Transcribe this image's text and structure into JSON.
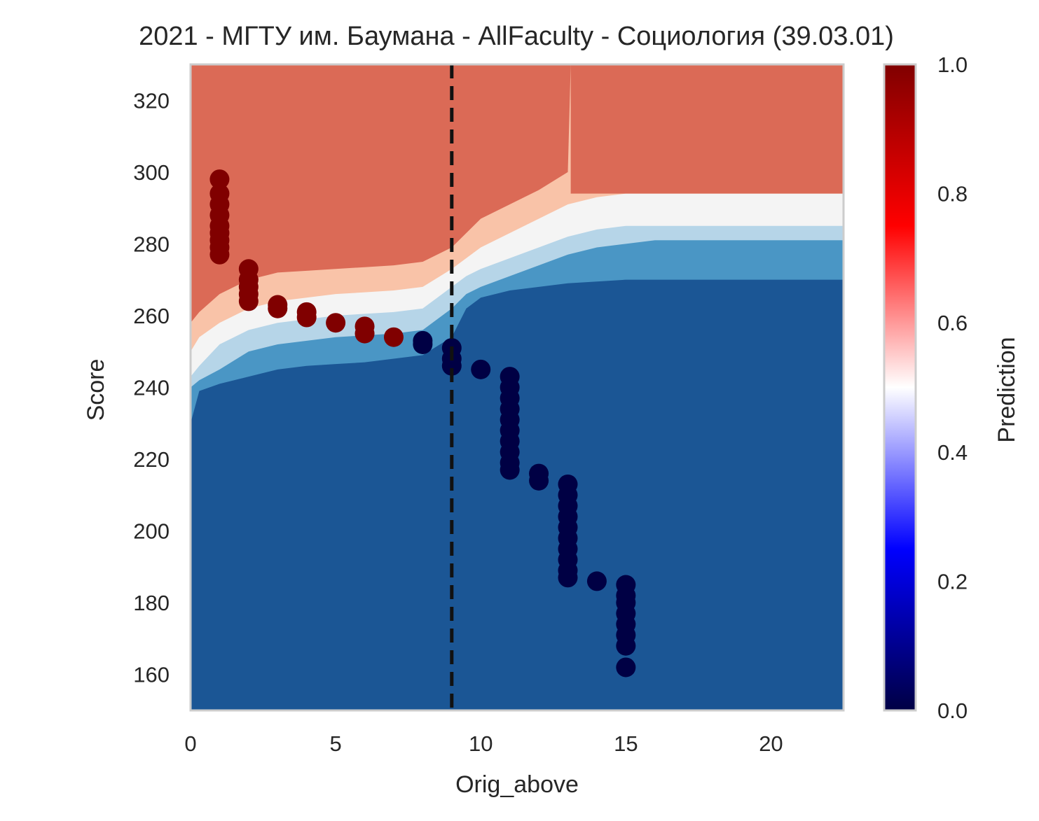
{
  "chart_data": {
    "type": "scatter",
    "title": "2021 - МГТУ им. Баумана - AllFaculty - Социология (39.03.01)",
    "xlabel": "Orig_above",
    "ylabel": "Score",
    "xlim": [
      0,
      22.5
    ],
    "ylim": [
      150,
      330
    ],
    "x_ticks": [
      0,
      5,
      10,
      15,
      20
    ],
    "y_ticks": [
      160,
      180,
      200,
      220,
      240,
      260,
      280,
      300,
      320
    ],
    "grid": false,
    "threshold_line": {
      "x": 9,
      "style": "dashed",
      "color": "#111111"
    },
    "background": {
      "type": "filled-contour",
      "description_levels": [
        0,
        0.2,
        0.4,
        0.6,
        0.8,
        1.0
      ],
      "band_colors": [
        "#1b5695",
        "#4a96c5",
        "#b6d5e8",
        "#f4f4f4",
        "#f9c3a8",
        "#db6a56",
        "#9c1228"
      ],
      "boundaries_score": [
        {
          "x": [
            0,
            0.3,
            1,
            2,
            3,
            4,
            5,
            6,
            7,
            8,
            9,
            9.5,
            10,
            11,
            12,
            13,
            14,
            15,
            16,
            17,
            18,
            19,
            20,
            21,
            22.5
          ],
          "y": [
            230,
            239,
            241,
            243,
            245,
            246,
            246.5,
            247,
            248,
            249,
            254,
            262,
            265,
            267,
            268,
            269,
            269.5,
            270,
            270,
            270,
            270,
            270,
            270,
            270,
            270
          ]
        },
        {
          "x": [
            0,
            0.3,
            1,
            2,
            3,
            4,
            5,
            6,
            7,
            8,
            9,
            9.5,
            10,
            11,
            12,
            13,
            14,
            15,
            16,
            17,
            18,
            19,
            20,
            21,
            22.5
          ],
          "y": [
            240,
            242,
            245,
            250,
            252,
            253,
            254,
            254.5,
            255,
            256,
            262,
            266,
            268,
            271,
            274,
            277,
            279,
            280,
            281,
            281,
            281,
            281,
            281,
            281,
            281
          ]
        },
        {
          "x": [
            0,
            0.3,
            1,
            2,
            3,
            4,
            5,
            6,
            7,
            8,
            9,
            9.5,
            10,
            11,
            12,
            13,
            14,
            15,
            16,
            17,
            18,
            19,
            20,
            21,
            22.5
          ],
          "y": [
            243,
            246,
            252,
            256,
            258,
            259,
            260,
            260.5,
            261,
            262,
            268,
            271,
            273,
            276,
            279,
            282,
            284,
            285,
            285,
            285,
            285,
            285,
            285,
            285,
            285
          ]
        },
        {
          "x": [
            0,
            0.3,
            1,
            2,
            3,
            4,
            5,
            6,
            7,
            8,
            9,
            9.5,
            10,
            11,
            12,
            13,
            14,
            15,
            16,
            17,
            18,
            19,
            20,
            21,
            22.5
          ],
          "y": [
            250,
            254,
            258,
            262,
            264,
            265,
            266,
            266.5,
            267,
            268,
            273,
            276,
            279,
            283,
            287,
            291,
            293,
            294,
            294,
            294,
            294,
            294,
            294,
            294,
            294
          ]
        },
        {
          "x": [
            0,
            0.3,
            1,
            2,
            3,
            4,
            5,
            6,
            7,
            8,
            9,
            9.5,
            10,
            11,
            12,
            13,
            13.1
          ],
          "y": [
            258,
            261,
            266,
            270,
            272,
            272.5,
            273,
            273.5,
            274,
            275,
            279,
            283,
            287,
            291,
            295,
            300,
            330
          ]
        }
      ],
      "top_right_region": {
        "x_from": 13.1,
        "color": "#db6a56"
      },
      "top_left_region": {
        "x_to": 13.1,
        "color": "#9c1228"
      }
    },
    "series": [
      {
        "color_value": 1.0,
        "points": [
          [
            1,
            298
          ],
          [
            1,
            294
          ],
          [
            1,
            291
          ],
          [
            1,
            288
          ],
          [
            1,
            285
          ],
          [
            1,
            283
          ],
          [
            1,
            281
          ],
          [
            1,
            279
          ],
          [
            1,
            277
          ],
          [
            2,
            273
          ],
          [
            2,
            270
          ],
          [
            2,
            268
          ],
          [
            2,
            266
          ],
          [
            2,
            264
          ],
          [
            3,
            263
          ],
          [
            3,
            262
          ],
          [
            4,
            261
          ],
          [
            4,
            259.5
          ],
          [
            5,
            258
          ],
          [
            6,
            257
          ],
          [
            6,
            255
          ],
          [
            7,
            254
          ]
        ]
      },
      {
        "color_value": 0.0,
        "points": [
          [
            8,
            253
          ],
          [
            8,
            252
          ],
          [
            9,
            251
          ],
          [
            9,
            248
          ],
          [
            9,
            246
          ],
          [
            10,
            245
          ],
          [
            11,
            243
          ],
          [
            11,
            240
          ],
          [
            11,
            237
          ],
          [
            11,
            234
          ],
          [
            11,
            231
          ],
          [
            11,
            228
          ],
          [
            11,
            225
          ],
          [
            11,
            222
          ],
          [
            11,
            219
          ],
          [
            11,
            217
          ],
          [
            12,
            216
          ],
          [
            12,
            214
          ],
          [
            13,
            213
          ],
          [
            13,
            210
          ],
          [
            13,
            207
          ],
          [
            13,
            204
          ],
          [
            13,
            201
          ],
          [
            13,
            198
          ],
          [
            13,
            195
          ],
          [
            13,
            192
          ],
          [
            13,
            189
          ],
          [
            13,
            187
          ],
          [
            14,
            186
          ],
          [
            15,
            185
          ],
          [
            15,
            182
          ],
          [
            15,
            180
          ],
          [
            15,
            177
          ],
          [
            15,
            174
          ],
          [
            15,
            171
          ],
          [
            15,
            168
          ],
          [
            15,
            162
          ]
        ]
      }
    ],
    "colorbar": {
      "label": "Prediction",
      "ticks": [
        "0.0",
        "0.2",
        "0.4",
        "0.6",
        "0.8",
        "1.0"
      ],
      "colormap": "seismic",
      "colormap_stops": [
        "#000044",
        "#0000ff",
        "#ffffff",
        "#ff0000",
        "#800000"
      ]
    }
  }
}
